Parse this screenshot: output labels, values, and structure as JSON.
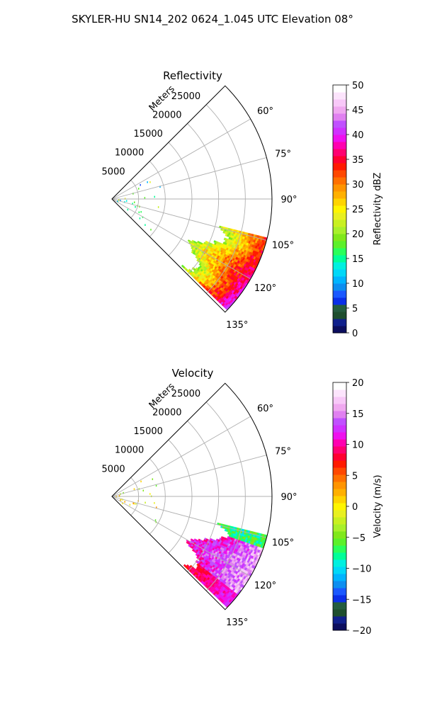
{
  "title": "SKYLER-HU  SN14_202  0624_1.045 UTC Elevation 08°",
  "range_unit_label": "Meters",
  "chart_data": [
    {
      "type": "ppi-sector",
      "title": "Reflectivity",
      "azimuth_range_deg": [
        45,
        135
      ],
      "range_max_m": 30000,
      "range_ticks": [
        5000,
        10000,
        15000,
        20000,
        25000
      ],
      "range_tick_labels": [
        "5000",
        "10000",
        "15000",
        "20000",
        "25000"
      ],
      "azimuth_ticks": [
        60,
        75,
        90,
        105,
        120,
        135
      ],
      "azimuth_tick_labels": [
        "60°",
        "75°",
        "90°",
        "105°",
        "120°",
        "135°"
      ],
      "grid": true,
      "colorbar": {
        "label": "Reflectivity dBZ",
        "min": 0,
        "max": 50,
        "ticks": [
          0,
          5,
          10,
          15,
          20,
          25,
          30,
          35,
          40,
          45,
          50
        ],
        "tick_labels": [
          "0",
          "5",
          "10",
          "15",
          "20",
          "25",
          "30",
          "35",
          "40",
          "45",
          "50"
        ],
        "colors": [
          "#0c0e5e",
          "#10208c",
          "#1e4e2e",
          "#245c40",
          "#0a2ee8",
          "#1a58ff",
          "#0d8ef0",
          "#00b4ff",
          "#00d8f8",
          "#00f0e0",
          "#00ff98",
          "#2aff5a",
          "#5cf02a",
          "#80e81a",
          "#a8f02a",
          "#c8f020",
          "#e8f020",
          "#fff500",
          "#ffd400",
          "#ffb000",
          "#ff9400",
          "#ff7000",
          "#ff4800",
          "#ff1a00",
          "#ff0030",
          "#ff0070",
          "#ff00b0",
          "#ee10ee",
          "#d030ff",
          "#c050ff",
          "#e080f0",
          "#f0a8f0",
          "#f8c8f8",
          "#fce4fc",
          "#ffffff"
        ]
      },
      "echo": {
        "azimuth_span_deg": [
          104,
          134
        ],
        "range_span_m": [
          17000,
          30000
        ],
        "value_range": [
          15,
          38
        ],
        "note_values_dominant": [
          18,
          22,
          27,
          32
        ]
      }
    },
    {
      "type": "ppi-sector",
      "title": "Velocity",
      "azimuth_range_deg": [
        45,
        135
      ],
      "range_max_m": 30000,
      "range_ticks": [
        5000,
        10000,
        15000,
        20000,
        25000
      ],
      "range_tick_labels": [
        "5000",
        "10000",
        "15000",
        "20000",
        "25000"
      ],
      "azimuth_ticks": [
        60,
        75,
        90,
        105,
        120,
        135
      ],
      "azimuth_tick_labels": [
        "60°",
        "75°",
        "90°",
        "105°",
        "120°",
        "135°"
      ],
      "grid": true,
      "colorbar": {
        "label": "Velocity (m/s)",
        "min": -20,
        "max": 20,
        "ticks": [
          -20,
          -15,
          -10,
          -5,
          0,
          5,
          10,
          15,
          20
        ],
        "tick_labels": [
          "−20",
          "−15",
          "−10",
          "−5",
          "0",
          "5",
          "10",
          "15",
          "20"
        ],
        "colors": [
          "#0c0e5e",
          "#10208c",
          "#1e4e2e",
          "#245c40",
          "#0a2ee8",
          "#1a58ff",
          "#0d8ef0",
          "#00b4ff",
          "#00d8f8",
          "#00f0e0",
          "#00ff98",
          "#2aff5a",
          "#5cf02a",
          "#80e81a",
          "#a8f02a",
          "#c8f020",
          "#e8f020",
          "#fff500",
          "#ffd400",
          "#ffb000",
          "#ff9400",
          "#ff7000",
          "#ff4800",
          "#ff1a00",
          "#ff0030",
          "#ff0070",
          "#ff00b0",
          "#ee10ee",
          "#d030ff",
          "#c050ff",
          "#e080f0",
          "#f0a8f0",
          "#f8c8f8",
          "#fce4fc",
          "#ffffff"
        ]
      },
      "echo": {
        "azimuth_span_deg": [
          104,
          134
        ],
        "range_span_m": [
          17000,
          30000
        ],
        "value_range": [
          -12,
          18
        ],
        "note_values_dominant": [
          8,
          12,
          15
        ]
      }
    }
  ]
}
